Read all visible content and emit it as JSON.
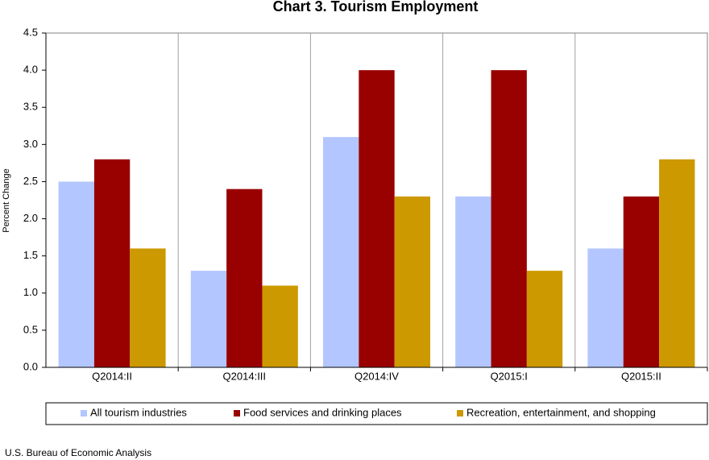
{
  "chart_data": {
    "type": "bar",
    "title": "Chart 3. Tourism Employment",
    "y_label": "Percent Change",
    "source": "U.S. Bureau of Economic Analysis",
    "categories": [
      "Q2014:II",
      "Q2014:III",
      "Q2014:IV",
      "Q2015:I",
      "Q2015:II"
    ],
    "series": [
      {
        "name": "All tourism industries",
        "color": "#b3c6ff",
        "values": [
          2.5,
          1.3,
          3.1,
          2.3,
          1.6
        ]
      },
      {
        "name": "Food services and drinking places",
        "color": "#990000",
        "values": [
          2.8,
          2.4,
          4.0,
          4.0,
          2.3
        ]
      },
      {
        "name": "Recreation, entertainment, and shopping",
        "color": "#cc9900",
        "values": [
          1.6,
          1.1,
          2.3,
          1.3,
          2.8
        ]
      }
    ],
    "ylim": [
      0,
      4.5
    ],
    "yticks": [
      {
        "value": 0,
        "label": "0.0"
      },
      0.5,
      {
        "value": 1,
        "label": "1.0"
      },
      1.5,
      {
        "value": 2,
        "label": "2.0"
      },
      2.5,
      {
        "value": 3,
        "label": "3.0"
      },
      3.5,
      {
        "value": 4,
        "label": "4.0"
      },
      4.5
    ],
    "legend": "bottom"
  }
}
